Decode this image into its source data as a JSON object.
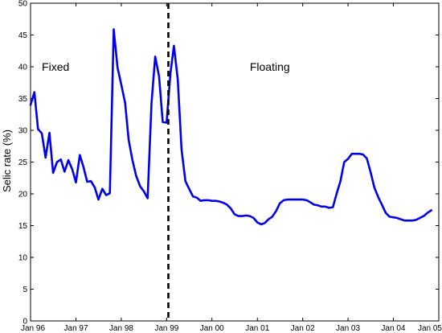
{
  "chart_data": {
    "type": "line",
    "title": "",
    "ylabel": "Selic rate (%)",
    "xlabel": "",
    "xlim": [
      "1996-01-01",
      "2005-01-01"
    ],
    "ylim": [
      0,
      50
    ],
    "yticks": [
      0,
      5,
      10,
      15,
      20,
      25,
      30,
      35,
      40,
      45,
      50
    ],
    "xticks": [
      {
        "date": "1996-01-01",
        "label": "Jan 96"
      },
      {
        "date": "1997-01-01",
        "label": "Jan 97"
      },
      {
        "date": "1998-01-01",
        "label": "Jan 98"
      },
      {
        "date": "1999-01-01",
        "label": "Jan 99"
      },
      {
        "date": "2000-01-01",
        "label": "Jan 00"
      },
      {
        "date": "2001-01-01",
        "label": "Jan 01"
      },
      {
        "date": "2002-01-01",
        "label": "Jan 02"
      },
      {
        "date": "2003-01-01",
        "label": "Jan 03"
      },
      {
        "date": "2004-01-01",
        "label": "Jan 04"
      },
      {
        "date": "2005-01-01",
        "label": "Jan 05"
      }
    ],
    "grid": false,
    "line_color": "#0000ee",
    "regime_line": {
      "date": "1999-01-15",
      "style": "dashed",
      "color": "#000000"
    },
    "annotations": [
      {
        "text": "Fixed",
        "date": "1996-04-01",
        "y": 40
      },
      {
        "text": "Floating",
        "date": "2000-11-01",
        "y": 40
      }
    ],
    "series": [
      {
        "points": [
          [
            "1996-01-01",
            34.0
          ],
          [
            "1996-02-01",
            36.0
          ],
          [
            "1996-03-01",
            30.2
          ],
          [
            "1996-04-01",
            29.5
          ],
          [
            "1996-05-01",
            25.7
          ],
          [
            "1996-06-01",
            29.6
          ],
          [
            "1996-07-01",
            23.3
          ],
          [
            "1996-08-01",
            25.0
          ],
          [
            "1996-09-01",
            25.4
          ],
          [
            "1996-10-01",
            23.5
          ],
          [
            "1996-11-01",
            25.3
          ],
          [
            "1996-12-01",
            23.9
          ],
          [
            "1997-01-01",
            21.8
          ],
          [
            "1997-02-01",
            26.1
          ],
          [
            "1997-03-01",
            24.3
          ],
          [
            "1997-04-01",
            21.9
          ],
          [
            "1997-05-01",
            22.0
          ],
          [
            "1997-06-01",
            21.0
          ],
          [
            "1997-07-01",
            19.1
          ],
          [
            "1997-08-01",
            20.8
          ],
          [
            "1997-09-01",
            19.8
          ],
          [
            "1997-10-01",
            20.1
          ],
          [
            "1997-11-01",
            45.9
          ],
          [
            "1997-12-01",
            39.9
          ],
          [
            "1998-01-01",
            37.2
          ],
          [
            "1998-02-01",
            34.3
          ],
          [
            "1998-03-01",
            28.5
          ],
          [
            "1998-04-01",
            25.3
          ],
          [
            "1998-05-01",
            22.8
          ],
          [
            "1998-06-01",
            21.2
          ],
          [
            "1998-07-01",
            20.4
          ],
          [
            "1998-08-01",
            19.3
          ],
          [
            "1998-09-01",
            34.2
          ],
          [
            "1998-10-01",
            41.6
          ],
          [
            "1998-11-01",
            38.5
          ],
          [
            "1998-12-01",
            31.3
          ],
          [
            "1999-01-01",
            31.2
          ],
          [
            "1999-02-01",
            39.0
          ],
          [
            "1999-03-01",
            43.3
          ],
          [
            "1999-04-01",
            38.0
          ],
          [
            "1999-05-01",
            27.0
          ],
          [
            "1999-06-01",
            22.0
          ],
          [
            "1999-07-01",
            20.8
          ],
          [
            "1999-08-01",
            19.6
          ],
          [
            "1999-09-01",
            19.4
          ],
          [
            "1999-10-01",
            18.9
          ],
          [
            "1999-11-01",
            19.0
          ],
          [
            "1999-12-01",
            19.0
          ],
          [
            "2000-01-01",
            18.9
          ],
          [
            "2000-02-01",
            18.9
          ],
          [
            "2000-03-01",
            18.8
          ],
          [
            "2000-04-01",
            18.6
          ],
          [
            "2000-05-01",
            18.3
          ],
          [
            "2000-06-01",
            17.7
          ],
          [
            "2000-07-01",
            16.8
          ],
          [
            "2000-08-01",
            16.5
          ],
          [
            "2000-09-01",
            16.5
          ],
          [
            "2000-10-01",
            16.6
          ],
          [
            "2000-11-01",
            16.5
          ],
          [
            "2000-12-01",
            16.2
          ],
          [
            "2001-01-01",
            15.5
          ],
          [
            "2001-02-01",
            15.2
          ],
          [
            "2001-03-01",
            15.4
          ],
          [
            "2001-04-01",
            16.0
          ],
          [
            "2001-05-01",
            16.4
          ],
          [
            "2001-06-01",
            17.3
          ],
          [
            "2001-07-01",
            18.5
          ],
          [
            "2001-08-01",
            19.0
          ],
          [
            "2001-09-01",
            19.1
          ],
          [
            "2001-10-01",
            19.1
          ],
          [
            "2001-11-01",
            19.1
          ],
          [
            "2001-12-01",
            19.1
          ],
          [
            "2002-01-01",
            19.1
          ],
          [
            "2002-02-01",
            19.0
          ],
          [
            "2002-03-01",
            18.7
          ],
          [
            "2002-04-01",
            18.3
          ],
          [
            "2002-05-01",
            18.2
          ],
          [
            "2002-06-01",
            18.0
          ],
          [
            "2002-07-01",
            18.0
          ],
          [
            "2002-08-01",
            17.8
          ],
          [
            "2002-09-01",
            17.9
          ],
          [
            "2002-10-01",
            20.0
          ],
          [
            "2002-11-01",
            22.0
          ],
          [
            "2002-12-01",
            25.0
          ],
          [
            "2003-01-01",
            25.5
          ],
          [
            "2003-02-01",
            26.3
          ],
          [
            "2003-03-01",
            26.3
          ],
          [
            "2003-04-01",
            26.3
          ],
          [
            "2003-05-01",
            26.2
          ],
          [
            "2003-06-01",
            25.6
          ],
          [
            "2003-07-01",
            23.5
          ],
          [
            "2003-08-01",
            21.0
          ],
          [
            "2003-09-01",
            19.5
          ],
          [
            "2003-10-01",
            18.3
          ],
          [
            "2003-11-01",
            17.0
          ],
          [
            "2003-12-01",
            16.4
          ],
          [
            "2004-01-01",
            16.3
          ],
          [
            "2004-02-01",
            16.2
          ],
          [
            "2004-03-01",
            16.0
          ],
          [
            "2004-04-01",
            15.8
          ],
          [
            "2004-05-01",
            15.8
          ],
          [
            "2004-06-01",
            15.8
          ],
          [
            "2004-07-01",
            15.9
          ],
          [
            "2004-08-01",
            16.2
          ],
          [
            "2004-09-01",
            16.5
          ],
          [
            "2004-10-01",
            17.0
          ],
          [
            "2004-11-01",
            17.4
          ]
        ]
      }
    ]
  }
}
